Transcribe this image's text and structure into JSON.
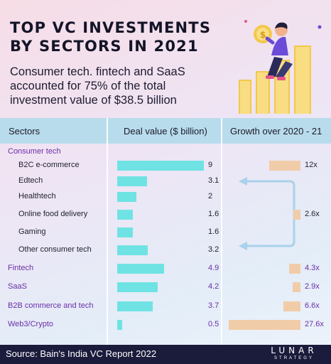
{
  "page": {
    "title_line1": "TOP VC INVESTMENTS",
    "title_line2": "BY SECTORS IN 2021",
    "subtitle_line1": "Consumer tech. fintech and SaaS",
    "subtitle_line2": "accounted for 75% of the total",
    "subtitle_line3": "investment value of $38.5 billion",
    "source": "Source: Bain's India VC Report 2022",
    "logo_main": "LUNAR",
    "logo_sub": "STRATEGY"
  },
  "colors": {
    "deal_bar": "#6fe3e3",
    "growth_bar": "#f1cca8",
    "category_text": "#6a2ea8",
    "header_band": "#b9dcec",
    "arrow": "#a9d2ec"
  },
  "chart_data": {
    "type": "bar",
    "columns": [
      "Sectors",
      "Deal value ($ billion)",
      "Growth over 2020 - 21"
    ],
    "rows": [
      {
        "label": "Consumer tech",
        "level": "category"
      },
      {
        "label": "B2C e-commerce",
        "level": "sub",
        "deal": 9,
        "deal_label": "9",
        "growth": 12,
        "growth_label": "12x"
      },
      {
        "label": "Edtech",
        "level": "sub",
        "deal": 3.1,
        "deal_label": "3.1"
      },
      {
        "label": "Healthtech",
        "level": "sub",
        "deal": 2,
        "deal_label": "2"
      },
      {
        "label": "Online food delivery",
        "level": "sub",
        "deal": 1.6,
        "deal_label": "1.6",
        "growth": 2.6,
        "growth_label": "2.6x"
      },
      {
        "label": "Gaming",
        "level": "sub",
        "deal": 1.6,
        "deal_label": "1.6"
      },
      {
        "label": "Other consumer tech",
        "level": "sub",
        "deal": 3.2,
        "deal_label": "3.2"
      },
      {
        "label": "Fintech",
        "level": "category",
        "deal": 4.9,
        "deal_label": "4.9",
        "growth": 4.3,
        "growth_label": "4.3x"
      },
      {
        "label": "SaaS",
        "level": "category",
        "deal": 4.2,
        "deal_label": "4.2",
        "growth": 2.9,
        "growth_label": "2.9x"
      },
      {
        "label": "B2B commerce and tech",
        "level": "category",
        "deal": 3.7,
        "deal_label": "3.7",
        "growth": 6.6,
        "growth_label": "6.6x"
      },
      {
        "label": "Web3/Crypto",
        "level": "category",
        "deal": 0.5,
        "deal_label": "0.5",
        "growth": 27.6,
        "growth_label": "27.6x"
      }
    ],
    "deal_max": 9,
    "growth_max": 27.6,
    "grid": false,
    "legend": "none"
  }
}
